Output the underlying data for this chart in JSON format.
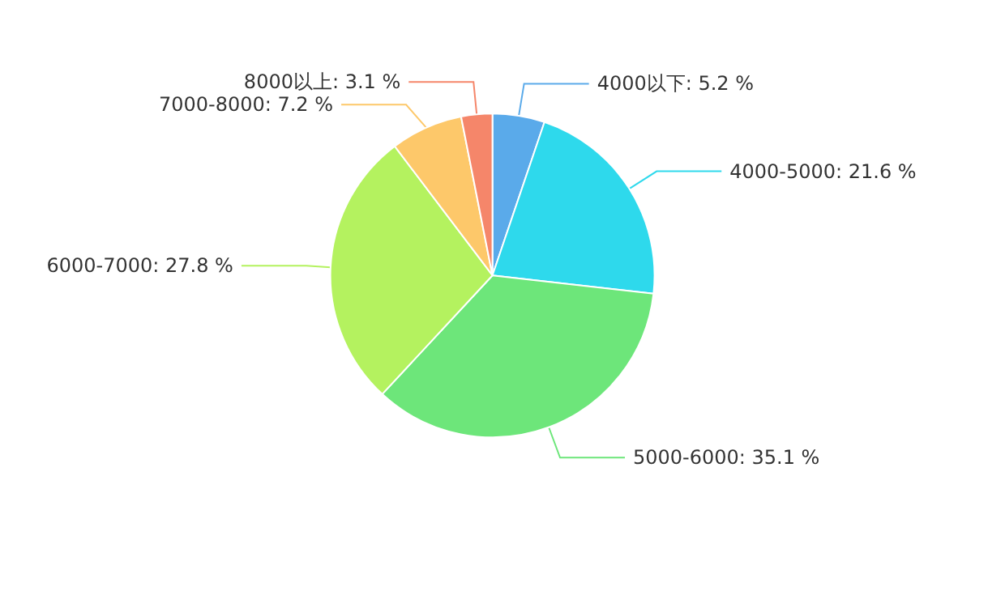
{
  "chart_data": {
    "type": "pie",
    "categories": [
      "4000以下",
      "4000-5000",
      "5000-6000",
      "6000-7000",
      "7000-8000",
      "8000以上"
    ],
    "values": [
      5.2,
      21.6,
      35.1,
      27.8,
      7.2,
      3.1
    ],
    "value_labels": [
      "5.2 %",
      "21.6 %",
      "35.1 %",
      "27.8 %",
      "7.2 %",
      "3.1 %"
    ],
    "colors": [
      "#5aaaea",
      "#2ed9ec",
      "#6de67a",
      "#b4f25f",
      "#fdc86a",
      "#f5866a"
    ],
    "legend": false
  }
}
